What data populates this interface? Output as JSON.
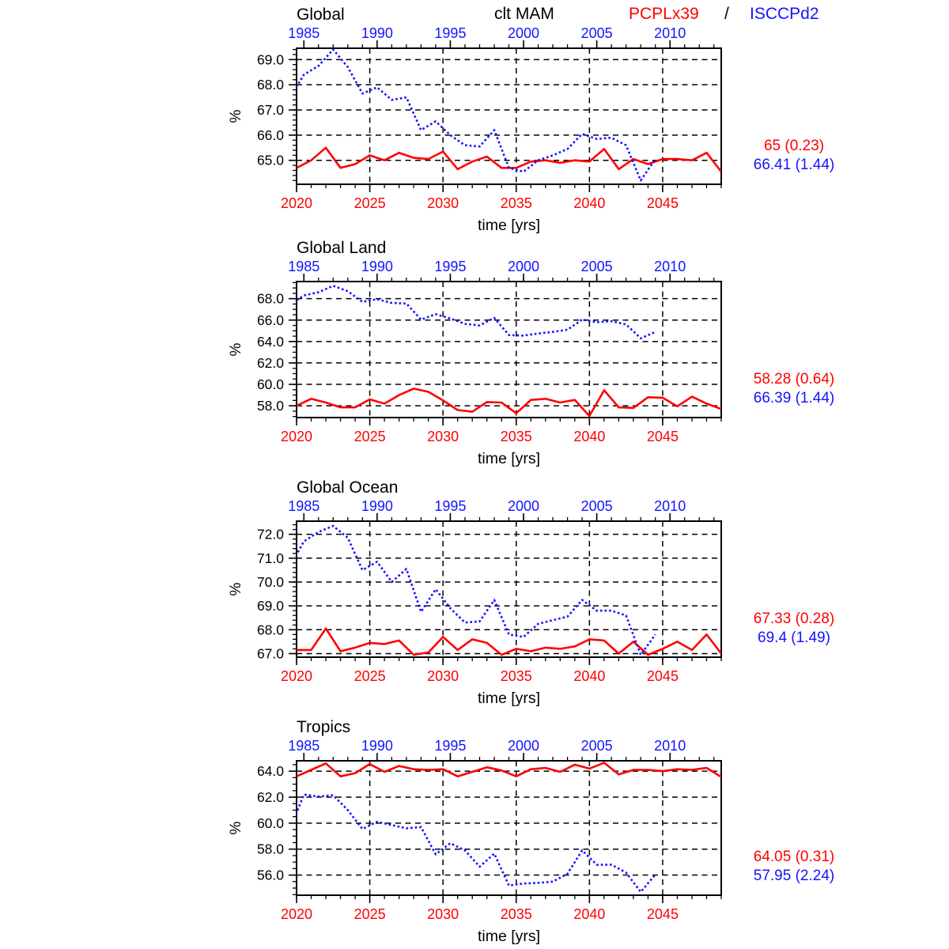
{
  "header": {
    "center_title": "clt MAM",
    "series1_label": "PCPLx39",
    "separator": "/",
    "series2_label": "ISCCPd2",
    "series1_color": "#ff0000",
    "series2_color": "#1414ff"
  },
  "chart_data": [
    {
      "type": "line",
      "title": "Global",
      "xlabel": "time [yrs]",
      "ylabel": "%",
      "ylim": [
        64.05,
        69.45
      ],
      "yticks": [
        65,
        66,
        67,
        68,
        69
      ],
      "ytick_labels": [
        "65.0",
        "66.0",
        "67.0",
        "68.0",
        "69.0"
      ],
      "y_minor_step": 0.2,
      "grid_x": [
        2025,
        2030,
        2035,
        2040,
        2045
      ],
      "bottom_axis": {
        "color": "#ff0000",
        "ticks": [
          2020,
          2025,
          2030,
          2035,
          2040,
          2045
        ],
        "minor_from": 2020,
        "minor_to": 2049
      },
      "top_axis": {
        "color": "#1414ff",
        "ticks": [
          1985,
          1990,
          1995,
          2000,
          2005,
          2010
        ],
        "minor_from": 1984,
        "minor_to": 2013
      },
      "series": [
        {
          "name": "PCPLx39",
          "color": "#ff0000",
          "style": "solid",
          "start_year": 2020,
          "values": [
            64.7,
            65.0,
            65.5,
            64.7,
            64.85,
            65.2,
            65.0,
            65.3,
            65.1,
            65.05,
            65.35,
            64.65,
            64.95,
            65.15,
            64.7,
            64.7,
            64.95,
            65.0,
            64.9,
            65.0,
            64.95,
            65.45,
            64.65,
            65.05,
            64.85,
            65.05,
            65.05,
            65.0,
            65.3,
            64.55
          ]
        },
        {
          "name": "ISCCPd2",
          "color": "#1414ff",
          "style": "dotted",
          "start_year": 1984,
          "values": [
            67.45,
            68.4,
            68.75,
            69.4,
            68.7,
            67.65,
            67.9,
            67.4,
            67.5,
            66.2,
            66.55,
            66.0,
            65.6,
            65.55,
            66.2,
            64.7,
            64.55,
            65.0,
            65.2,
            65.45,
            66.05,
            65.85,
            65.9,
            65.6,
            64.2,
            65.05
          ]
        }
      ],
      "stats": [
        {
          "label": "65 (0.23)",
          "color": "#ff0000"
        },
        {
          "label": "66.41 (1.44)",
          "color": "#1414ff"
        }
      ]
    },
    {
      "type": "line",
      "title": "Global Land",
      "xlabel": "time [yrs]",
      "ylabel": "%",
      "ylim": [
        56.9,
        69.6
      ],
      "yticks": [
        58,
        60,
        62,
        64,
        66,
        68
      ],
      "ytick_labels": [
        "58.0",
        "60.0",
        "62.0",
        "64.0",
        "66.0",
        "68.0"
      ],
      "y_minor_step": 0.5,
      "grid_x": [
        2025,
        2030,
        2035,
        2040,
        2045
      ],
      "bottom_axis": {
        "color": "#ff0000",
        "ticks": [
          2020,
          2025,
          2030,
          2035,
          2040,
          2045
        ],
        "minor_from": 2020,
        "minor_to": 2049
      },
      "top_axis": {
        "color": "#1414ff",
        "ticks": [
          1985,
          1990,
          1995,
          2000,
          2005,
          2010
        ],
        "minor_from": 1984,
        "minor_to": 2013
      },
      "series": [
        {
          "name": "PCPLx39",
          "color": "#ff0000",
          "style": "solid",
          "start_year": 2020,
          "values": [
            58.0,
            58.65,
            58.3,
            57.85,
            57.85,
            58.6,
            58.2,
            59.0,
            59.6,
            59.3,
            58.5,
            57.6,
            57.45,
            58.35,
            58.3,
            57.3,
            58.55,
            58.65,
            58.3,
            58.55,
            57.05,
            59.45,
            57.85,
            57.8,
            58.8,
            58.75,
            57.95,
            58.85,
            58.2,
            57.7
          ]
        },
        {
          "name": "ISCCPd2",
          "color": "#1414ff",
          "style": "dotted",
          "start_year": 1984,
          "values": [
            67.4,
            68.3,
            68.6,
            69.2,
            68.7,
            67.7,
            67.95,
            67.6,
            67.55,
            66.05,
            66.55,
            66.15,
            65.65,
            65.5,
            66.2,
            64.6,
            64.55,
            64.75,
            64.9,
            65.1,
            66.05,
            65.8,
            65.9,
            65.6,
            64.3,
            64.9
          ]
        }
      ],
      "stats": [
        {
          "label": "58.28 (0.64)",
          "color": "#ff0000"
        },
        {
          "label": "66.39 (1.44)",
          "color": "#1414ff"
        }
      ]
    },
    {
      "type": "line",
      "title": "Global Ocean",
      "xlabel": "time [yrs]",
      "ylabel": "%",
      "ylim": [
        66.85,
        72.55
      ],
      "yticks": [
        67,
        68,
        69,
        70,
        71,
        72
      ],
      "ytick_labels": [
        "67.0",
        "68.0",
        "69.0",
        "70.0",
        "71.0",
        "72.0"
      ],
      "y_minor_step": 0.2,
      "grid_x": [
        2025,
        2030,
        2035,
        2040,
        2045
      ],
      "bottom_axis": {
        "color": "#ff0000",
        "ticks": [
          2020,
          2025,
          2030,
          2035,
          2040,
          2045
        ],
        "minor_from": 2020,
        "minor_to": 2049
      },
      "top_axis": {
        "color": "#1414ff",
        "ticks": [
          1985,
          1990,
          1995,
          2000,
          2005,
          2010
        ],
        "minor_from": 1984,
        "minor_to": 2013
      },
      "series": [
        {
          "name": "PCPLx39",
          "color": "#ff0000",
          "style": "solid",
          "start_year": 2020,
          "values": [
            67.15,
            67.15,
            68.05,
            67.1,
            67.25,
            67.45,
            67.4,
            67.55,
            66.95,
            67.05,
            67.7,
            67.15,
            67.6,
            67.45,
            66.95,
            67.2,
            67.1,
            67.25,
            67.2,
            67.3,
            67.6,
            67.55,
            67.0,
            67.5,
            66.95,
            67.2,
            67.5,
            67.15,
            67.8,
            67.0
          ]
        },
        {
          "name": "ISCCPd2",
          "color": "#1414ff",
          "style": "dotted",
          "start_year": 1984,
          "values": [
            70.6,
            71.7,
            72.1,
            72.35,
            71.85,
            70.5,
            70.85,
            70.0,
            70.55,
            68.75,
            69.7,
            68.9,
            68.3,
            68.35,
            69.25,
            67.8,
            67.7,
            68.25,
            68.4,
            68.55,
            69.25,
            68.8,
            68.8,
            68.6,
            66.95,
            67.8
          ]
        }
      ],
      "stats": [
        {
          "label": "67.33 (0.28)",
          "color": "#ff0000"
        },
        {
          "label": "69.4 (1.49)",
          "color": "#1414ff"
        }
      ]
    },
    {
      "type": "line",
      "title": "Tropics",
      "xlabel": "time [yrs]",
      "ylabel": "%",
      "ylim": [
        54.45,
        64.8
      ],
      "yticks": [
        56,
        58,
        60,
        62,
        64
      ],
      "ytick_labels": [
        "56.0",
        "58.0",
        "60.0",
        "62.0",
        "64.0"
      ],
      "y_minor_step": 0.5,
      "grid_x": [
        2025,
        2030,
        2035,
        2040,
        2045
      ],
      "bottom_axis": {
        "color": "#ff0000",
        "ticks": [
          2020,
          2025,
          2030,
          2035,
          2040,
          2045
        ],
        "minor_from": 2020,
        "minor_to": 2049
      },
      "top_axis": {
        "color": "#1414ff",
        "ticks": [
          1985,
          1990,
          1995,
          2000,
          2005,
          2010
        ],
        "minor_from": 1984,
        "minor_to": 2013
      },
      "series": [
        {
          "name": "PCPLx39",
          "color": "#ff0000",
          "style": "solid",
          "start_year": 2020,
          "values": [
            63.6,
            64.1,
            64.6,
            63.6,
            63.85,
            64.55,
            63.95,
            64.4,
            64.15,
            64.1,
            64.15,
            63.6,
            63.95,
            64.3,
            64.05,
            63.6,
            64.15,
            64.25,
            63.95,
            64.5,
            64.2,
            64.65,
            63.75,
            64.1,
            64.1,
            64.0,
            64.15,
            64.1,
            64.25,
            63.55
          ]
        },
        {
          "name": "ISCCPd2",
          "color": "#1414ff",
          "style": "dotted",
          "start_year": 1984,
          "values": [
            59.4,
            62.2,
            62.05,
            62.15,
            61.0,
            59.55,
            60.1,
            59.85,
            59.6,
            59.7,
            57.6,
            58.45,
            57.9,
            56.65,
            57.65,
            55.2,
            55.35,
            55.4,
            55.5,
            56.1,
            57.9,
            56.8,
            56.8,
            56.2,
            54.7,
            56.05
          ]
        }
      ],
      "stats": [
        {
          "label": "64.05 (0.31)",
          "color": "#ff0000"
        },
        {
          "label": "57.95 (2.24)",
          "color": "#1414ff"
        }
      ]
    }
  ]
}
